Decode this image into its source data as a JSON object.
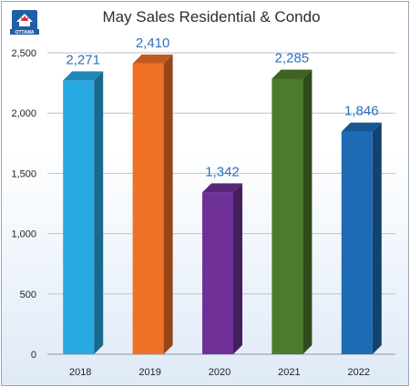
{
  "logo": {
    "name": "ottawa-real-estate-board-logo",
    "text": "OTTAWA"
  },
  "chart_data": {
    "type": "bar",
    "title": "May Sales Residential & Condo",
    "xlabel": "",
    "ylabel": "",
    "categories": [
      "2018",
      "2019",
      "2020",
      "2021",
      "2022"
    ],
    "values": [
      2271,
      2410,
      1342,
      2285,
      1846
    ],
    "data_labels": [
      "2,271",
      "2,410",
      "1,342",
      "2,285",
      "1,846"
    ],
    "ylim": [
      0,
      2500
    ],
    "yticks": [
      0,
      500,
      1000,
      1500,
      2000,
      2500
    ],
    "ytick_labels": [
      "0",
      "500",
      "1,000",
      "1,500",
      "2,000",
      "2,500"
    ],
    "grid": true,
    "legend": "none",
    "bar_colors": [
      "#29a9e1",
      "#ef7125",
      "#6f3198",
      "#4d7a2b",
      "#1d6bb4"
    ],
    "label_color": "#2f6fbf"
  }
}
